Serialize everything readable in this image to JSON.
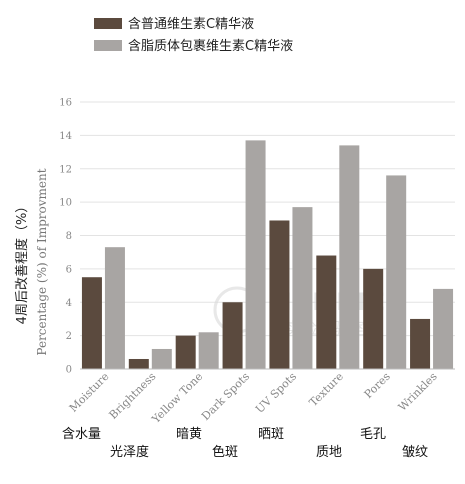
{
  "chart_data": {
    "type": "bar",
    "legend": [
      "含普通维生素C精华液",
      "含脂质体包裹维生素C精华液"
    ],
    "series": [
      {
        "name": "含普通维生素C精华液",
        "color": "#5b4a3e",
        "values": [
          5.5,
          0.6,
          2.0,
          4.0,
          8.9,
          6.8,
          6.0,
          3.0
        ]
      },
      {
        "name": "含脂质体包裹维生素C精华液",
        "color": "#a8a5a3",
        "values": [
          7.3,
          1.2,
          2.2,
          13.7,
          9.7,
          13.4,
          11.6,
          4.8
        ]
      }
    ],
    "categories": [
      "Moisture",
      "Brightness",
      "Yellow Tone",
      "Dark Spots",
      "UV Spots",
      "Texture",
      "Pores",
      "Wrinkles"
    ],
    "categories_cn": [
      "含水量",
      "光泽度",
      "暗黄",
      "色斑",
      "晒斑",
      "质地",
      "毛孔",
      "皱纹"
    ],
    "ylabel_cn": "4周后改善程度（%）",
    "ylabel_en": "Percentage (%) of Improvment",
    "yticks": [
      0,
      2,
      4,
      6,
      8,
      10,
      12,
      14,
      16
    ],
    "ylim": [
      0,
      16
    ],
    "grid": true,
    "legend_position": "top-left",
    "watermark": {
      "text": "MOMETER",
      "text_cn": "实验室验室"
    }
  }
}
